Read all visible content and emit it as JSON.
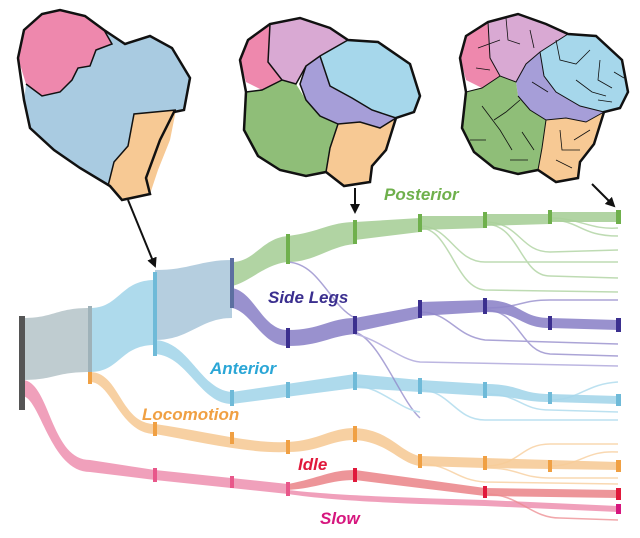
{
  "labels": {
    "posterior": "Posterior",
    "side_legs": "Side Legs",
    "anterior": "Anterior",
    "locomotion": "Locomotion",
    "idle": "Idle",
    "slow": "Slow"
  },
  "colors": {
    "posterior": "#6fb04c",
    "side_legs": "#3b2f8f",
    "anterior": "#2aa6d6",
    "locomotion": "#f0a043",
    "idle": "#e0193b",
    "slow": "#d6167e",
    "green_band": "#a9d09a",
    "purple_band": "#8f86c9",
    "blue_band": "#a6d7eb",
    "orange_band": "#f7cc98",
    "pink_band": "#ef96b4",
    "red_band": "#ec8a8f",
    "root_band": "#b9c7cc",
    "map_pink": "#ee88ad",
    "map_blue": "#a9cbe1",
    "map_orange": "#f7c994",
    "map_green": "#8fbe78",
    "map_purple": "#a69ed8",
    "map_lightblue": "#b9def0",
    "map_lilac": "#d9a9d3"
  },
  "icons": {
    "arrow": "down-arrow-icon",
    "map": "brain-region-map-icon"
  }
}
